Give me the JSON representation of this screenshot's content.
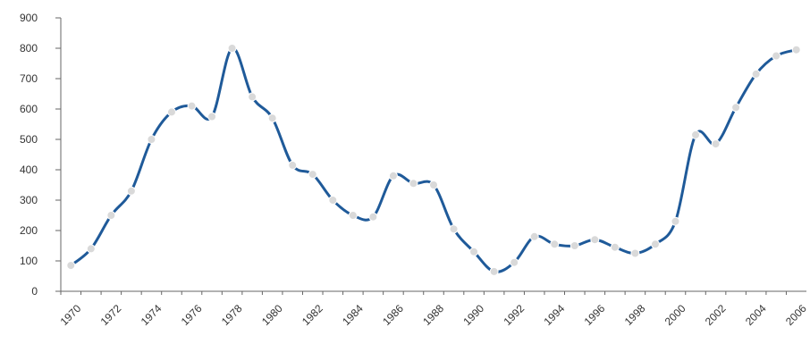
{
  "chart_data": {
    "type": "line",
    "title": "",
    "xlabel": "",
    "ylabel": "",
    "x": [
      1970,
      1971,
      1972,
      1973,
      1974,
      1975,
      1976,
      1977,
      1978,
      1979,
      1980,
      1981,
      1982,
      1983,
      1984,
      1985,
      1986,
      1987,
      1988,
      1989,
      1990,
      1991,
      1992,
      1993,
      1994,
      1995,
      1996,
      1997,
      1998,
      1999,
      2000,
      2001,
      2002,
      2003,
      2004,
      2005,
      2006
    ],
    "series": [
      {
        "values": [
          85,
          140,
          250,
          330,
          500,
          590,
          610,
          575,
          800,
          640,
          570,
          415,
          385,
          300,
          250,
          245,
          380,
          355,
          350,
          205,
          130,
          65,
          95,
          180,
          155,
          150,
          170,
          145,
          125,
          155,
          230,
          515,
          485,
          605,
          715,
          775,
          795
        ]
      }
    ],
    "ylim": [
      0,
      900
    ],
    "yticks": [
      0,
      100,
      200,
      300,
      400,
      500,
      600,
      700,
      800,
      900
    ],
    "xticks": [
      1970,
      1972,
      1974,
      1976,
      1978,
      1980,
      1982,
      1984,
      1986,
      1988,
      1990,
      1992,
      1994,
      1996,
      1998,
      2000,
      2002,
      2004,
      2006
    ],
    "grid": false,
    "colors": {
      "line": "#1f5a99",
      "marker": "#d9d9d9",
      "axis": "#666666"
    }
  }
}
